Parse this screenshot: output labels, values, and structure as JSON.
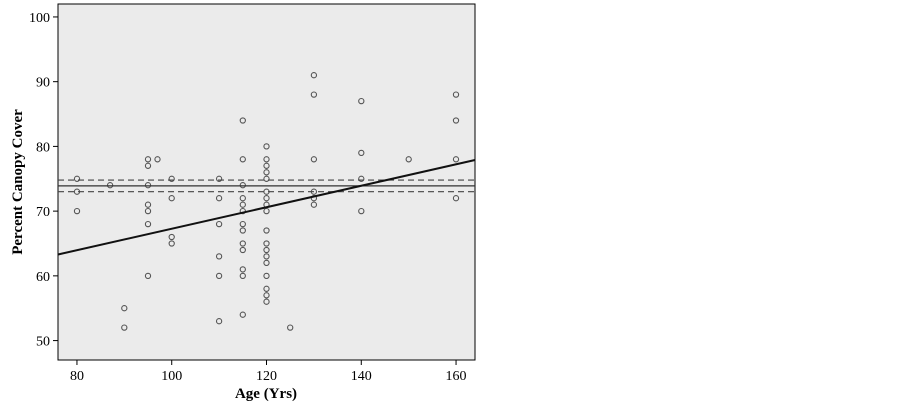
{
  "chart_data": {
    "type": "scatter",
    "title": "",
    "xlabel": "Age (Yrs)",
    "ylabel": "Percent Canopy Cover",
    "xlim": [
      76,
      164
    ],
    "ylim": [
      47,
      102
    ],
    "x_ticks": [
      80,
      100,
      120,
      140,
      160
    ],
    "y_ticks": [
      50,
      60,
      70,
      80,
      90,
      100
    ],
    "x_tick_labels": [
      "80",
      "100",
      "120",
      "140",
      "160"
    ],
    "y_tick_labels": [
      "50",
      "60",
      "70",
      "80",
      "90",
      "100"
    ],
    "grid": false,
    "background": "#ebebeb",
    "points": [
      [
        80,
        75
      ],
      [
        80,
        73
      ],
      [
        80,
        70
      ],
      [
        87,
        74
      ],
      [
        90,
        55
      ],
      [
        90,
        52
      ],
      [
        95,
        78
      ],
      [
        95,
        77
      ],
      [
        95,
        74
      ],
      [
        95,
        71
      ],
      [
        95,
        70
      ],
      [
        95,
        68
      ],
      [
        95,
        60
      ],
      [
        97,
        78
      ],
      [
        100,
        75
      ],
      [
        100,
        72
      ],
      [
        100,
        66
      ],
      [
        100,
        65
      ],
      [
        110,
        75
      ],
      [
        110,
        72
      ],
      [
        110,
        68
      ],
      [
        110,
        63
      ],
      [
        110,
        60
      ],
      [
        110,
        53
      ],
      [
        115,
        84
      ],
      [
        115,
        78
      ],
      [
        115,
        74
      ],
      [
        115,
        72
      ],
      [
        115,
        71
      ],
      [
        115,
        70
      ],
      [
        115,
        68
      ],
      [
        115,
        67
      ],
      [
        115,
        65
      ],
      [
        115,
        64
      ],
      [
        115,
        61
      ],
      [
        115,
        60
      ],
      [
        115,
        54
      ],
      [
        120,
        80
      ],
      [
        120,
        78
      ],
      [
        120,
        77
      ],
      [
        120,
        76
      ],
      [
        120,
        75
      ],
      [
        120,
        73
      ],
      [
        120,
        72
      ],
      [
        120,
        71
      ],
      [
        120,
        70
      ],
      [
        120,
        67
      ],
      [
        120,
        65
      ],
      [
        120,
        64
      ],
      [
        120,
        63
      ],
      [
        120,
        62
      ],
      [
        120,
        60
      ],
      [
        120,
        58
      ],
      [
        120,
        57
      ],
      [
        120,
        56
      ],
      [
        125,
        52
      ],
      [
        130,
        91
      ],
      [
        130,
        88
      ],
      [
        130,
        78
      ],
      [
        130,
        73
      ],
      [
        130,
        72
      ],
      [
        130,
        71
      ],
      [
        140,
        87
      ],
      [
        140,
        79
      ],
      [
        140,
        75
      ],
      [
        140,
        70
      ],
      [
        150,
        78
      ],
      [
        160,
        88
      ],
      [
        160,
        84
      ],
      [
        160,
        78
      ],
      [
        160,
        72
      ]
    ],
    "regression_line": {
      "x": [
        76,
        164
      ],
      "y": [
        63.3,
        77.9
      ]
    },
    "mean_line": {
      "y": 73.9
    },
    "confidence_band": {
      "upper": 74.8,
      "lower": 73.0
    }
  }
}
